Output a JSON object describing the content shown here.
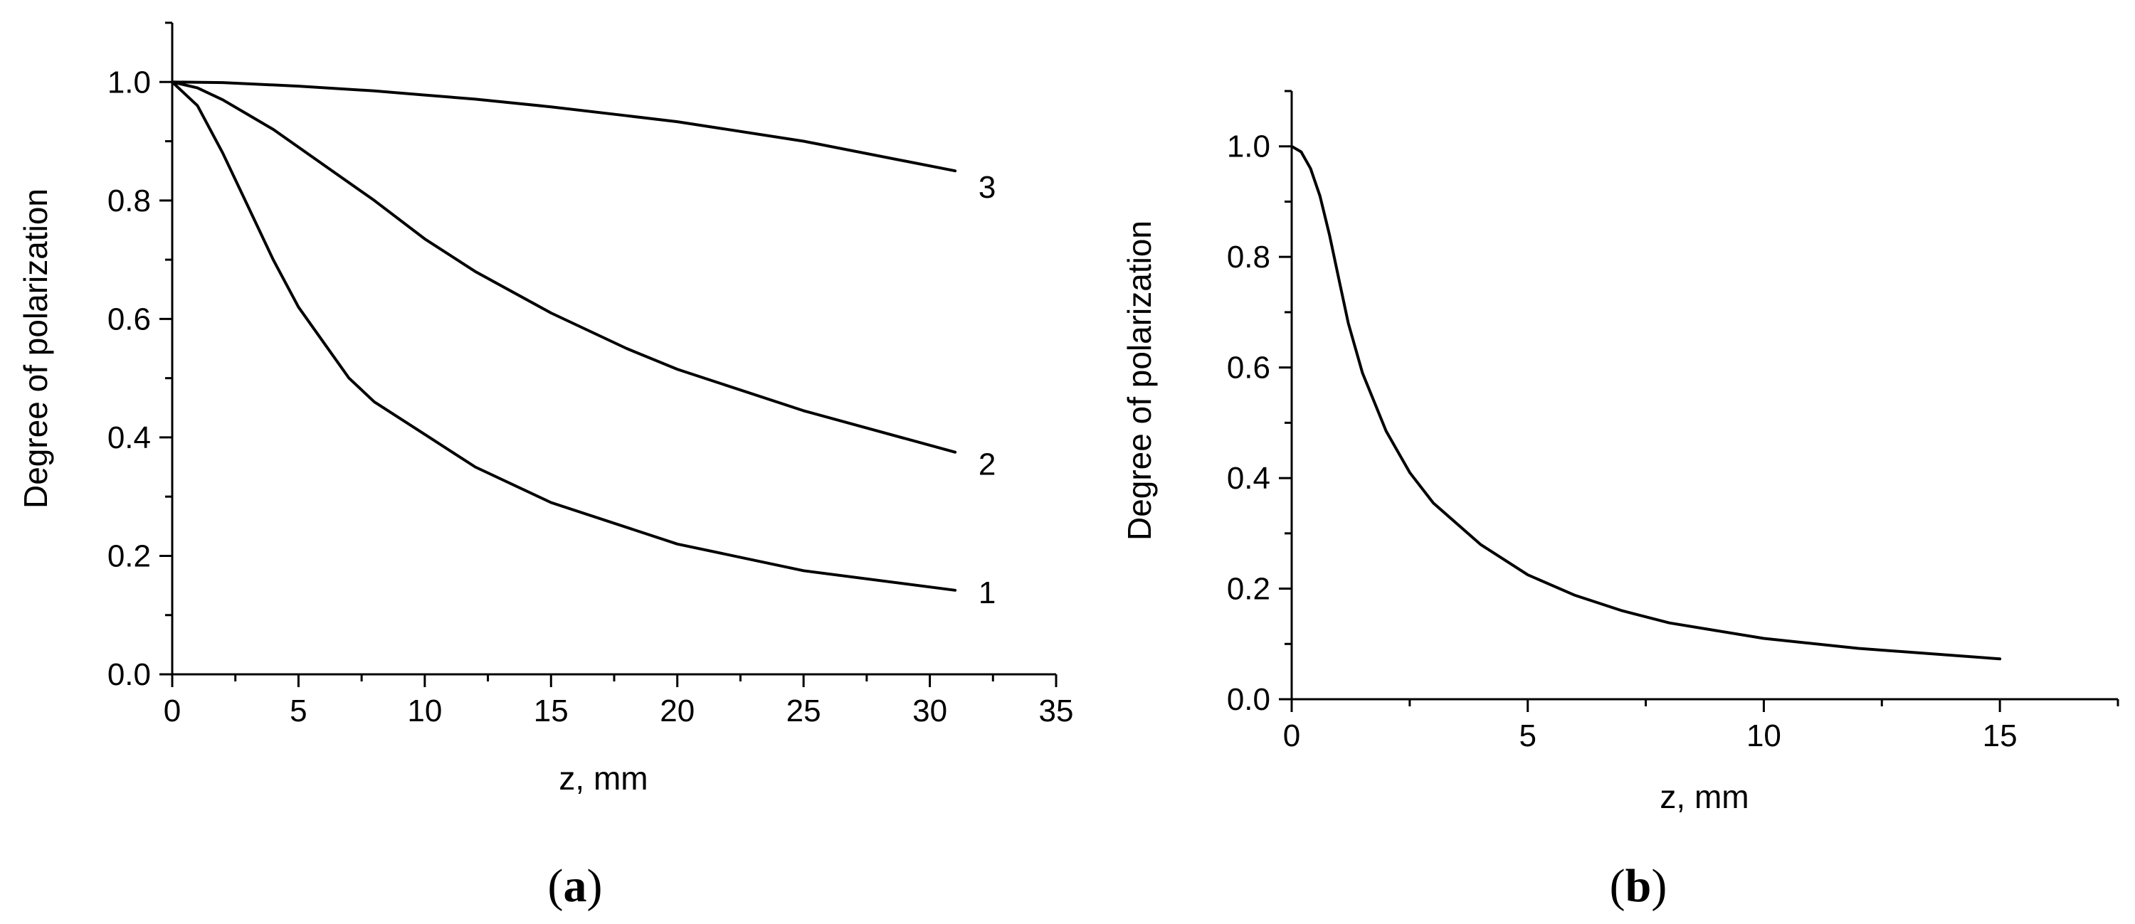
{
  "chart_data": [
    {
      "panel": "(a)",
      "panel_letter": "a",
      "type": "line",
      "xlabel": "z, mm",
      "ylabel": "Degree of polarization",
      "xlim": [
        0,
        35
      ],
      "ylim": [
        0,
        1.1
      ],
      "xticks": [
        "0",
        "5",
        "10",
        "15",
        "20",
        "25",
        "30",
        "35"
      ],
      "yticks": [
        "0.0",
        "0.2",
        "0.4",
        "0.6",
        "0.8",
        "1.0"
      ],
      "grid": false,
      "series": [
        {
          "name": "1",
          "x": [
            0,
            1,
            2,
            3,
            4,
            5,
            6,
            7,
            8,
            10,
            12,
            15,
            20,
            25,
            31
          ],
          "y": [
            1.0,
            0.96,
            0.88,
            0.79,
            0.7,
            0.62,
            0.56,
            0.5,
            0.46,
            0.405,
            0.35,
            0.29,
            0.22,
            0.175,
            0.142
          ]
        },
        {
          "name": "2",
          "x": [
            0,
            1,
            2,
            3,
            4,
            5,
            6,
            8,
            10,
            12,
            15,
            18,
            20,
            25,
            31
          ],
          "y": [
            1.0,
            0.99,
            0.97,
            0.945,
            0.92,
            0.89,
            0.86,
            0.8,
            0.735,
            0.68,
            0.61,
            0.55,
            0.515,
            0.445,
            0.375
          ]
        },
        {
          "name": "3",
          "x": [
            0,
            2,
            5,
            8,
            10,
            12,
            15,
            18,
            20,
            25,
            31
          ],
          "y": [
            1.0,
            0.999,
            0.993,
            0.985,
            0.978,
            0.971,
            0.958,
            0.943,
            0.933,
            0.9,
            0.85
          ]
        }
      ]
    },
    {
      "panel": "(b)",
      "panel_letter": "b",
      "type": "line",
      "xlabel": "z, mm",
      "ylabel": "Degree of polarization",
      "xlim": [
        0,
        17.5
      ],
      "ylim": [
        0,
        1.1
      ],
      "xticks": [
        "0",
        "5",
        "10",
        "15"
      ],
      "yticks": [
        "0.0",
        "0.2",
        "0.4",
        "0.6",
        "0.8",
        "1.0"
      ],
      "grid": false,
      "series": [
        {
          "x": [
            0,
            0.2,
            0.4,
            0.6,
            0.8,
            1.0,
            1.2,
            1.5,
            2.0,
            2.5,
            3.0,
            4.0,
            5.0,
            6.0,
            7.0,
            8.0,
            10.0,
            12.0,
            15.0
          ],
          "y": [
            1.0,
            0.99,
            0.96,
            0.91,
            0.84,
            0.76,
            0.68,
            0.59,
            0.485,
            0.41,
            0.355,
            0.28,
            0.225,
            0.188,
            0.16,
            0.138,
            0.11,
            0.092,
            0.073
          ]
        }
      ]
    }
  ]
}
